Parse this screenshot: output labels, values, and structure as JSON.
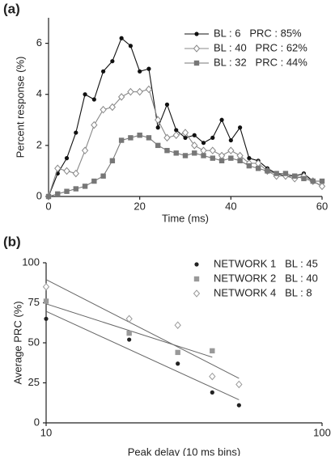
{
  "chart_data": [
    {
      "type": "line",
      "panel_label": "(a)",
      "x_label": "Time  (ms)",
      "y_label": "Percent response (%)",
      "x": [
        0,
        2,
        4,
        6,
        8,
        10,
        12,
        14,
        16,
        18,
        20,
        22,
        24,
        26,
        28,
        30,
        32,
        34,
        36,
        38,
        40,
        42,
        44,
        46,
        48,
        50,
        52,
        54,
        56,
        58,
        60
      ],
      "xlim": [
        0,
        60
      ],
      "xticks": [
        0,
        20,
        40,
        60
      ],
      "ylim": [
        0,
        7
      ],
      "yticks": [
        0,
        2,
        4,
        6
      ],
      "legend": "upper right",
      "series": [
        {
          "name": "BL : 6   PRC : 85%",
          "color": "#111111",
          "marker": "circle",
          "values": [
            0,
            0.9,
            1.5,
            2.5,
            4.0,
            3.8,
            4.9,
            5.3,
            6.2,
            5.9,
            4.9,
            5.0,
            2.7,
            3.6,
            2.6,
            2.3,
            2.4,
            2.1,
            2.3,
            3.0,
            2.2,
            2.7,
            1.5,
            1.4,
            1.1,
            0.9,
            0.8,
            0.8,
            0.9,
            0.6,
            0.4
          ]
        },
        {
          "name": "BL : 40   PRC : 62%",
          "color": "#888888",
          "marker": "diamond",
          "values": [
            0,
            1.1,
            1.0,
            0.9,
            1.8,
            2.8,
            3.4,
            3.5,
            3.9,
            4.1,
            4.1,
            4.2,
            3.0,
            2.3,
            2.4,
            2.5,
            2.0,
            1.8,
            1.8,
            1.6,
            1.8,
            1.6,
            1.3,
            1.3,
            1.0,
            0.8,
            0.8,
            0.7,
            0.8,
            0.6,
            0.4
          ]
        },
        {
          "name": "BL : 32   PRC : 44%",
          "color": "#777777",
          "marker": "square",
          "values": [
            0,
            0.1,
            0.2,
            0.3,
            0.4,
            0.6,
            0.8,
            1.4,
            2.2,
            2.3,
            2.4,
            2.3,
            2.0,
            1.8,
            1.7,
            1.6,
            1.7,
            1.6,
            1.5,
            1.4,
            1.5,
            1.4,
            1.2,
            1.1,
            1.0,
            0.9,
            0.9,
            0.8,
            0.7,
            0.6,
            0.6
          ]
        }
      ]
    },
    {
      "type": "scatter",
      "panel_label": "(b)",
      "x_label": "Peak delay (10 ms bins)",
      "y_label": "Average PRC (%)",
      "xscale": "log",
      "xlim": [
        10,
        100
      ],
      "xticks": [
        10,
        100
      ],
      "ylim": [
        0,
        100
      ],
      "yticks": [
        0,
        25,
        50,
        75,
        100
      ],
      "legend": "upper right",
      "trendline": true,
      "series": [
        {
          "name": "NETWORK 1   BL : 45",
          "color": "#222222",
          "marker": "circle",
          "x": [
            10,
            20,
            30,
            40,
            50
          ],
          "values": [
            65,
            52,
            37,
            19,
            11
          ]
        },
        {
          "name": "NETWORK 2   BL : 40",
          "color": "#999999",
          "marker": "square",
          "x": [
            10,
            20,
            30,
            40
          ],
          "values": [
            76,
            56,
            44,
            45
          ]
        },
        {
          "name": "NETWORK 4   BL : 8",
          "color": "#999999",
          "marker": "diamond",
          "x": [
            10,
            20,
            30,
            40,
            50
          ],
          "values": [
            85,
            65,
            61,
            29,
            24
          ]
        }
      ]
    }
  ]
}
